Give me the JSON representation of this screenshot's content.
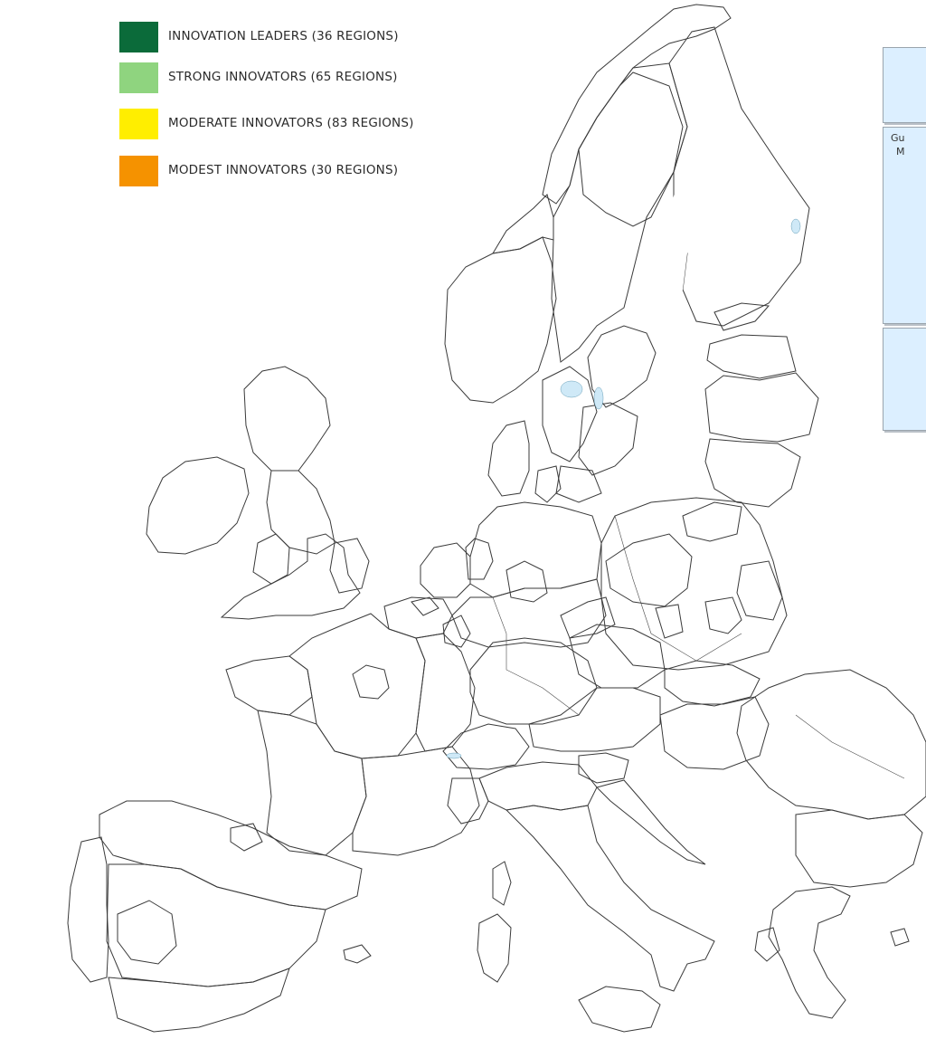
{
  "legend": {
    "items": [
      {
        "label": "INNOVATION LEADERS (36 REGIONS)",
        "color": "#0b6b3a"
      },
      {
        "label": "STRONG INNOVATORS (65 REGIONS)",
        "color": "#8fd47f"
      },
      {
        "label": "MODERATE INNOVATORS (83 REGIONS)",
        "color": "#ffee00"
      },
      {
        "label": "MODEST INNOVATORS (30 REGIONS)",
        "color": "#f59200"
      }
    ]
  },
  "insets": {
    "second_label_line1": "Gu",
    "second_label_line2": "M"
  },
  "colors": {
    "leader": "#0b6b3a",
    "strong": "#8fd47f",
    "moderate": "#ffee00",
    "modest": "#f59200",
    "no_data": "#d8d8d8",
    "sea": "#ffffff",
    "lake": "#cfe9f7"
  }
}
